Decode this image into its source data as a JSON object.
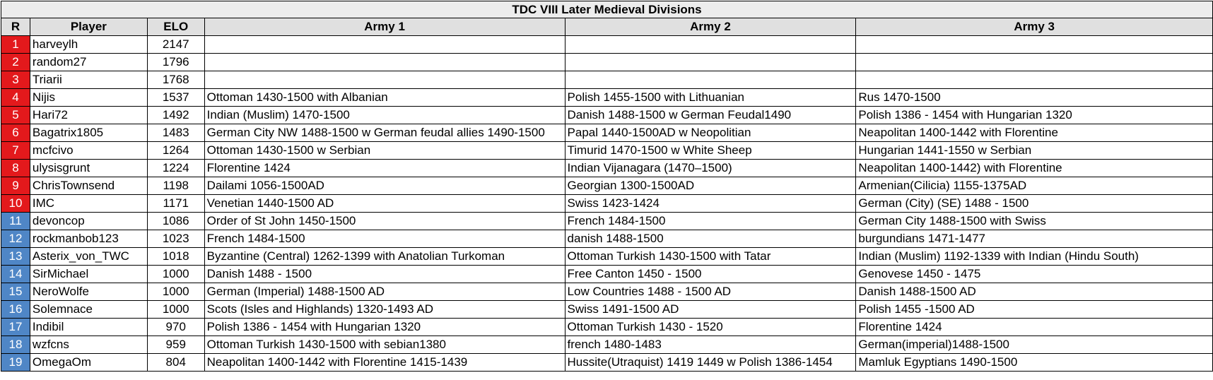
{
  "title": "TDC VIII Later Medieval Divisions",
  "headers": {
    "rank": "R",
    "player": "Player",
    "elo": "ELO",
    "army1": "Army 1",
    "army2": "Army 2",
    "army3": "Army 3"
  },
  "colors": {
    "top_rank": "#e3191c",
    "other_rank": "#4f86c6"
  },
  "rows": [
    {
      "rank": "1",
      "player": "harveylh",
      "elo": "2147",
      "army1": "",
      "army2": "",
      "army3": ""
    },
    {
      "rank": "2",
      "player": "random27",
      "elo": "1796",
      "army1": "",
      "army2": "",
      "army3": ""
    },
    {
      "rank": "3",
      "player": "Triarii",
      "elo": "1768",
      "army1": "",
      "army2": "",
      "army3": ""
    },
    {
      "rank": "4",
      "player": "Nijis",
      "elo": "1537",
      "army1": "Ottoman 1430-1500 with Albanian",
      "army2": "Polish 1455-1500 with Lithuanian",
      "army3": "Rus 1470-1500"
    },
    {
      "rank": "5",
      "player": "Hari72",
      "elo": "1492",
      "army1": "Indian (Muslim) 1470-1500",
      "army2": "Danish 1488-1500 w German Feudal1490",
      "army3": "Polish 1386 - 1454 with Hungarian 1320"
    },
    {
      "rank": "6",
      "player": "Bagatrix1805",
      "elo": "1483",
      "army1": "German City NW 1488-1500 w German feudal allies 1490-1500",
      "army2": "Papal 1440-1500AD w Neopolitian",
      "army3": "Neapolitan 1400-1442 with Florentine"
    },
    {
      "rank": "7",
      "player": "mcfcivo",
      "elo": "1264",
      "army1": "Ottoman 1430-1500 w Serbian",
      "army2": "Timurid 1470-1500 w White Sheep",
      "army3": "Hungarian 1441-1550 w Serbian"
    },
    {
      "rank": "8",
      "player": "ulysisgrunt",
      "elo": "1224",
      "army1": "Florentine 1424",
      "army2": "Indian Vijanagara (1470–1500)",
      "army3": "Neapolitan 1400-1442) with Florentine"
    },
    {
      "rank": "9",
      "player": "ChrisTownsend",
      "elo": "1198",
      "army1": "Dailami 1056-1500AD",
      "army2": "Georgian 1300-1500AD",
      "army3": "Armenian(Cilicia) 1155-1375AD"
    },
    {
      "rank": "10",
      "player": "IMC",
      "elo": "1171",
      "army1": "Venetian 1440-1500 AD",
      "army2": "Swiss 1423-1424",
      "army3": "German (City) (SE) 1488 - 1500"
    },
    {
      "rank": "11",
      "player": "devoncop",
      "elo": "1086",
      "army1": "Order of St John 1450-1500",
      "army2": "French 1484-1500",
      "army3": "German City 1488-1500 with Swiss"
    },
    {
      "rank": "12",
      "player": "rockmanbob123",
      "elo": "1023",
      "army1": "French 1484-1500",
      "army2": "danish 1488-1500",
      "army3": "burgundians 1471-1477"
    },
    {
      "rank": "13",
      "player": "Asterix_von_TWC",
      "elo": "1018",
      "army1": "Byzantine (Central) 1262-1399 with Anatolian Turkoman",
      "army2": "Ottoman Turkish 1430-1500 with Tatar",
      "army3": "Indian (Muslim) 1192-1339 with Indian (Hindu South)"
    },
    {
      "rank": "14",
      "player": "SirMichael",
      "elo": "1000",
      "army1": "Danish 1488 - 1500",
      "army2": "Free Canton 1450 - 1500",
      "army3": "Genovese 1450 - 1475"
    },
    {
      "rank": "15",
      "player": "NeroWolfe",
      "elo": "1000",
      "army1": "German (Imperial) 1488-1500 AD",
      "army2": "Low Countries 1488 - 1500 AD",
      "army3": "Danish 1488-1500 AD"
    },
    {
      "rank": "16",
      "player": "Solemnace",
      "elo": "1000",
      "army1": "Scots (Isles and Highlands) 1320-1493 AD",
      "army2": "Swiss 1491-1500 AD",
      "army3": "Polish 1455 -1500 AD"
    },
    {
      "rank": "17",
      "player": "Indibil",
      "elo": "970",
      "army1": "Polish 1386 - 1454 with Hungarian 1320",
      "army2": "Ottoman Turkish 1430 - 1520",
      "army3": "Florentine 1424"
    },
    {
      "rank": "18",
      "player": "wzfcns",
      "elo": "959",
      "army1": "Ottoman Turkish 1430-1500 with sebian1380",
      "army2": "french 1480-1483",
      "army3": "German(imperial)1488-1500"
    },
    {
      "rank": "19",
      "player": "OmegaOm",
      "elo": "804",
      "army1": "Neapolitan 1400-1442 with Florentine 1415-1439",
      "army2": "Hussite(Utraquist) 1419 1449 w Polish 1386-1454",
      "army3": "Mamluk Egyptians 1490-1500"
    }
  ]
}
